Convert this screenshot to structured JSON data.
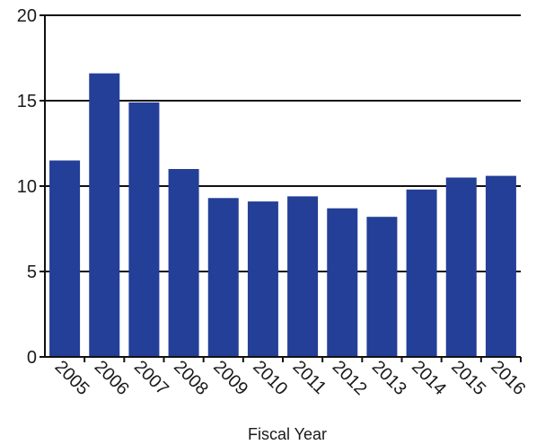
{
  "chart_data": {
    "type": "bar",
    "title": "",
    "xlabel": "Fiscal Year",
    "ylabel": "",
    "categories": [
      "2005",
      "2006",
      "2007",
      "2008",
      "2009",
      "2010",
      "2011",
      "2012",
      "2013",
      "2014",
      "2015",
      "2016"
    ],
    "values": [
      11.5,
      16.6,
      14.9,
      11.0,
      9.3,
      9.1,
      9.4,
      8.7,
      8.2,
      9.8,
      10.5,
      10.6
    ],
    "ylim": [
      0,
      20
    ],
    "yticks": [
      "0",
      "5",
      "10",
      "15",
      "20"
    ],
    "grid": true,
    "bar_color": "#233f97",
    "axis_color": "#111111"
  }
}
